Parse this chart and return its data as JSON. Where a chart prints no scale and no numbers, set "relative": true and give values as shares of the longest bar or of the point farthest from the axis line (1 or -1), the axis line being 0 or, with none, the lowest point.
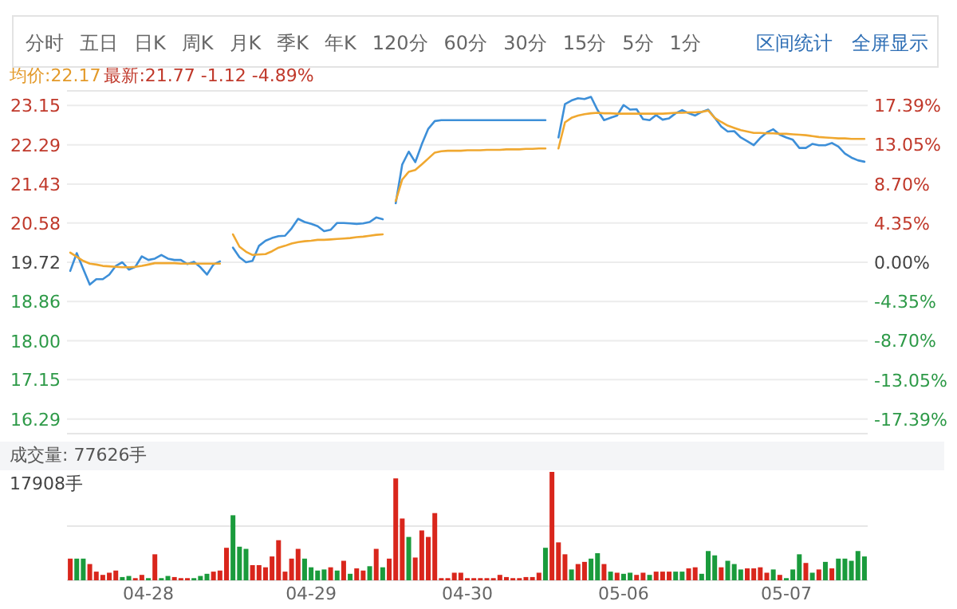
{
  "chart_data": [
    {
      "type": "line",
      "title": "均价:22.17",
      "subtitle": "最新:21.77 -1.12 -4.89%",
      "annotations": [
        "分时",
        "五日",
        "日K",
        "周K",
        "月K",
        "季K",
        "年K",
        "120分",
        "60分",
        "30分",
        "15分",
        "5分",
        "1分",
        "区间统计",
        "全屏显示"
      ],
      "categories": [
        null,
        null,
        null,
        null,
        null,
        null,
        null,
        null,
        null,
        null,
        null,
        null,
        null,
        null,
        null,
        null,
        null,
        null,
        null,
        null,
        null,
        null,
        null,
        null,
        null,
        null,
        null,
        null,
        null,
        null,
        null,
        null,
        null,
        null,
        null,
        null,
        null,
        null,
        null,
        null,
        null,
        null,
        null,
        null,
        null,
        null,
        null,
        null,
        null,
        null,
        null,
        null,
        null,
        null,
        null,
        null,
        null,
        null,
        null,
        null,
        null,
        null,
        null,
        null,
        null,
        null,
        null,
        null,
        null,
        null,
        null,
        null,
        null,
        null,
        null,
        null,
        null,
        null,
        null,
        null,
        null,
        null,
        null,
        null,
        null,
        null,
        null,
        null,
        null,
        null,
        null,
        null,
        null,
        null,
        null,
        null,
        null,
        null,
        null,
        null,
        null,
        null,
        null,
        null,
        null,
        null,
        null,
        null,
        null,
        null,
        null,
        null,
        null,
        null,
        null,
        null,
        null,
        null,
        null,
        null,
        null,
        null,
        null
      ],
      "ylim": [
        15.97,
        23.47
      ],
      "y2lim": [
        -19.01,
        19.01
      ],
      "yticks": [
        23.15,
        22.29,
        21.43,
        20.58,
        19.72,
        18.86,
        {
          "value": 18,
          "label": "18.00"
        },
        17.15,
        16.29
      ],
      "y2ticks": [
        {
          "value": 17.39,
          "label": "17.39%"
        },
        {
          "value": 13.05,
          "label": "13.05%"
        },
        {
          "value": 8.7,
          "label": "8.70%"
        },
        {
          "value": 4.35,
          "label": "4.35%"
        },
        {
          "value": 0,
          "label": "0.00%"
        },
        {
          "value": -4.35,
          "label": "-4.35%"
        },
        {
          "value": -8.7,
          "label": "-8.70%"
        },
        {
          "value": -13.05,
          "label": "-13.05%"
        },
        {
          "value": -17.39,
          "label": "-17.39%"
        }
      ],
      "tick_labels": "y",
      "grid": "y",
      "series": [
        {
          "color": "#3d8fd8",
          "values": [
            19.53,
            19.92,
            19.57,
            19.23,
            19.35,
            19.35,
            19.45,
            19.64,
            19.72,
            19.56,
            19.62,
            19.85,
            19.77,
            19.8,
            19.88,
            19.8,
            19.77,
            19.77,
            19.68,
            19.73,
            19.61,
            19.45,
            19.67,
            19.74,
            null,
            20.04,
            19.83,
            19.72,
            19.75,
            20.08,
            20.19,
            20.25,
            20.29,
            20.3,
            20.46,
            20.67,
            20.6,
            20.56,
            20.51,
            20.4,
            20.43,
            20.58,
            20.58,
            20.57,
            20.56,
            20.57,
            20.6,
            20.7,
            20.66,
            null,
            21.01,
            21.86,
            22.14,
            21.91,
            22.3,
            22.64,
            22.81,
            22.83,
            22.83,
            22.83,
            22.83,
            22.83,
            22.83,
            22.83,
            22.83,
            22.83,
            22.83,
            22.83,
            22.83,
            22.83,
            22.83,
            22.83,
            22.83,
            22.83,
            null,
            22.45,
            23.18,
            23.26,
            23.31,
            23.29,
            23.34,
            23.05,
            22.83,
            22.88,
            22.93,
            23.16,
            23.06,
            23.07,
            22.85,
            22.83,
            22.94,
            22.84,
            22.87,
            22.98,
            23.05,
            22.98,
            22.93,
            23.01,
            23.06,
            22.88,
            22.69,
            22.58,
            22.59,
            22.45,
            22.37,
            22.28,
            22.44,
            22.56,
            22.63,
            22.51,
            22.45,
            22.4,
            22.22,
            22.22,
            22.31,
            22.28,
            22.28,
            22.33,
            22.25,
            22.1,
            22.01,
            21.95,
            21.92
          ]
        },
        {
          "color": "#f0a830",
          "values": [
            19.93,
            19.84,
            19.75,
            19.69,
            19.67,
            19.64,
            19.63,
            19.62,
            19.61,
            19.61,
            19.62,
            19.64,
            19.67,
            19.7,
            19.7,
            19.7,
            19.7,
            19.69,
            19.69,
            19.69,
            19.69,
            19.69,
            19.69,
            19.69,
            null,
            20.33,
            20.06,
            19.95,
            19.88,
            19.89,
            19.9,
            19.96,
            20.04,
            20.08,
            20.13,
            20.16,
            20.18,
            20.19,
            20.21,
            20.21,
            20.22,
            20.23,
            20.24,
            20.25,
            20.27,
            20.28,
            20.3,
            20.32,
            20.33,
            null,
            21.06,
            21.53,
            21.7,
            21.74,
            21.86,
            21.99,
            22.12,
            22.15,
            22.16,
            22.16,
            22.16,
            22.17,
            22.17,
            22.17,
            22.18,
            22.18,
            22.18,
            22.19,
            22.19,
            22.19,
            22.2,
            22.2,
            22.21,
            22.21,
            null,
            22.21,
            22.78,
            22.88,
            22.93,
            22.96,
            22.98,
            22.99,
            22.98,
            22.98,
            22.97,
            22.97,
            22.97,
            22.97,
            22.97,
            22.97,
            22.97,
            22.97,
            22.98,
            22.99,
            22.99,
            23.0,
            23.0,
            23.01,
            23.04,
            22.88,
            22.79,
            22.71,
            22.66,
            22.61,
            22.58,
            22.55,
            22.55,
            22.54,
            22.54,
            22.53,
            22.53,
            22.52,
            22.51,
            22.5,
            22.48,
            22.46,
            22.45,
            22.44,
            22.43,
            22.43,
            22.42,
            22.42,
            22.42
          ]
        }
      ]
    },
    {
      "type": "bar",
      "title": "成交量: 77626手",
      "annotations": [
        "17908手"
      ],
      "relative": true,
      "categories": [
        null,
        null,
        null,
        null,
        null,
        null,
        null,
        null,
        null,
        null,
        null,
        null,
        "04-28",
        null,
        null,
        null,
        null,
        null,
        null,
        null,
        null,
        null,
        null,
        null,
        null,
        null,
        null,
        null,
        null,
        null,
        null,
        null,
        null,
        null,
        null,
        null,
        null,
        "04-29",
        null,
        null,
        null,
        null,
        null,
        null,
        null,
        null,
        null,
        null,
        null,
        null,
        null,
        null,
        null,
        null,
        null,
        null,
        null,
        null,
        null,
        null,
        null,
        "04-30",
        null,
        null,
        null,
        null,
        null,
        null,
        null,
        null,
        null,
        null,
        null,
        null,
        null,
        null,
        null,
        null,
        null,
        null,
        null,
        null,
        null,
        null,
        null,
        "05-06",
        null,
        null,
        null,
        null,
        null,
        null,
        null,
        null,
        null,
        null,
        null,
        null,
        null,
        null,
        null,
        null,
        null,
        null,
        null,
        null,
        null,
        null,
        null,
        null,
        "05-07",
        null,
        null,
        null,
        null,
        null,
        null,
        null,
        null,
        null,
        null,
        null,
        null
      ],
      "ref_lines": [
        {
          "axis": "y",
          "value": 0.5
        }
      ],
      "series": [
        {
          "values": [
            0.2,
            0.2,
            0.2,
            0.15,
            0.08,
            0.05,
            0.07,
            0.09,
            0.03,
            0.04,
            0.02,
            0.05,
            0.02,
            0.24,
            0.02,
            0.04,
            0.03,
            0.02,
            0.02,
            0.02,
            0.04,
            0.06,
            0.08,
            0.09,
            0.3,
            0.6,
            0.31,
            0.29,
            0.14,
            0.14,
            0.12,
            0.22,
            0.37,
            0.08,
            0.2,
            0.29,
            0.2,
            0.12,
            0.09,
            0.1,
            0.12,
            0.09,
            0.18,
            0.06,
            0.11,
            0.09,
            0.13,
            0.29,
            0.12,
            0.2,
            0.94,
            0.57,
            0.4,
            0.21,
            0.46,
            0.4,
            0.62,
            0.02,
            0.02,
            0.07,
            0.07,
            0.02,
            0.02,
            0.02,
            0.02,
            0.02,
            0.05,
            0.03,
            0.02,
            0.02,
            0.03,
            0.03,
            0.07,
            0.3,
            1.0,
            0.35,
            0.24,
            0.1,
            0.15,
            0.17,
            0.2,
            0.25,
            0.15,
            0.08,
            0.07,
            0.06,
            0.07,
            0.05,
            0.07,
            0.05,
            0.08,
            0.08,
            0.08,
            0.08,
            0.08,
            0.11,
            0.12,
            0.06,
            0.27,
            0.23,
            0.12,
            0.18,
            0.15,
            0.1,
            0.11,
            0.11,
            0.12,
            0.07,
            0.1,
            0.05,
            0.02,
            0.1,
            0.24,
            0.16,
            0.07,
            0.1,
            0.17,
            0.11,
            0.2,
            0.2,
            0.18,
            0.27,
            0.22
          ],
          "colors": [
            "#d9261c",
            "#1a9b3c",
            "#1a9b3c",
            "#d9261c",
            "#d9261c",
            "#d9261c",
            "#d9261c",
            "#d9261c",
            "#1a9b3c",
            "#1a9b3c",
            "#d9261c",
            "#d9261c",
            "#1a9b3c",
            "#d9261c",
            "#1a9b3c",
            "#1a9b3c",
            "#d9261c",
            "#d9261c",
            "#d9261c",
            "#1a9b3c",
            "#1a9b3c",
            "#1a9b3c",
            "#d9261c",
            "#d9261c",
            "#d9261c",
            "#1a9b3c",
            "#1a9b3c",
            "#1a9b3c",
            "#d9261c",
            "#d9261c",
            "#d9261c",
            "#d9261c",
            "#d9261c",
            "#d9261c",
            "#d9261c",
            "#d9261c",
            "#1a9b3c",
            "#1a9b3c",
            "#1a9b3c",
            "#1a9b3c",
            "#d9261c",
            "#1a9b3c",
            "#d9261c",
            "#1a9b3c",
            "#d9261c",
            "#d9261c",
            "#1a9b3c",
            "#d9261c",
            "#1a9b3c",
            "#d9261c",
            "#d9261c",
            "#d9261c",
            "#1a9b3c",
            "#d9261c",
            "#d9261c",
            "#d9261c",
            "#d9261c",
            "#d9261c",
            "#d9261c",
            "#d9261c",
            "#d9261c",
            "#d9261c",
            "#d9261c",
            "#d9261c",
            "#d9261c",
            "#d9261c",
            "#d9261c",
            "#d9261c",
            "#d9261c",
            "#d9261c",
            "#d9261c",
            "#d9261c",
            "#d9261c",
            "#1a9b3c",
            "#d9261c",
            "#d9261c",
            "#d9261c",
            "#1a9b3c",
            "#d9261c",
            "#d9261c",
            "#1a9b3c",
            "#1a9b3c",
            "#d9261c",
            "#1a9b3c",
            "#d9261c",
            "#1a9b3c",
            "#1a9b3c",
            "#d9261c",
            "#d9261c",
            "#1a9b3c",
            "#d9261c",
            "#d9261c",
            "#d9261c",
            "#1a9b3c",
            "#1a9b3c",
            "#d9261c",
            "#d9261c",
            "#1a9b3c",
            "#1a9b3c",
            "#1a9b3c",
            "#d9261c",
            "#1a9b3c",
            "#1a9b3c",
            "#1a9b3c",
            "#d9261c",
            "#d9261c",
            "#d9261c",
            "#d9261c",
            "#1a9b3c",
            "#d9261c",
            "#1a9b3c",
            "#1a9b3c",
            "#1a9b3c",
            "#d9261c",
            "#1a9b3c",
            "#d9261c",
            "#1a9b3c",
            "#d9261c",
            "#1a9b3c",
            "#1a9b3c",
            "#1a9b3c",
            "#1a9b3c",
            "#1a9b3c"
          ]
        }
      ]
    }
  ]
}
